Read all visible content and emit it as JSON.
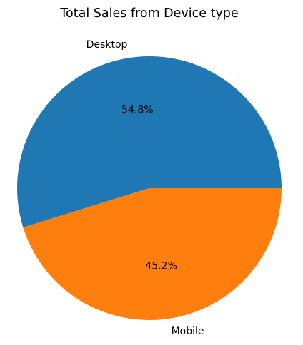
{
  "chart_data": {
    "type": "pie",
    "title": "Total Sales from Device type",
    "categories": [
      "Desktop",
      "Mobile"
    ],
    "values": [
      54.8,
      45.2
    ],
    "percent_labels": [
      "54.8%",
      "45.2%"
    ],
    "colors": [
      "#1f77b4",
      "#ff7f0e"
    ],
    "start_angle": 0,
    "direction": "counterclockwise"
  }
}
